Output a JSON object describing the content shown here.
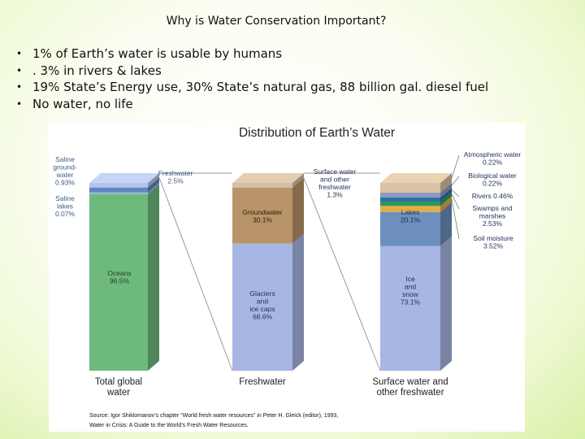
{
  "slide": {
    "title": "Why is Water Conservation Important?",
    "bullets": [
      "1% of Earth’s water is usable by humans",
      ". 3% in rivers & lakes",
      "19% State’s Energy use, 30% State’s natural gas, 88 billion gal. diesel fuel",
      "No water, no life"
    ],
    "bullet_marker": "•"
  },
  "figure": {
    "title": "Distribution of Earth’s Water",
    "source_line1": "Source: Igor Shiklomanov’s chapter “World fresh water resources” in Peter H. Gleick (editor), 1993,",
    "source_line2": "Water in Crisis: A Guide to the World’s Fresh Water Resources."
  },
  "chart_data": {
    "type": "bar",
    "title": "Distribution of Earth’s Water",
    "unit": "%",
    "bars": [
      {
        "label_lines": [
          "Total global",
          "water"
        ],
        "segments": [
          {
            "name": "Oceans",
            "value": 96.5,
            "color": "#6dba7c",
            "label_lines": [
              "Oceans",
              "96.5%"
            ]
          },
          {
            "name": "Saline lakes",
            "value": 0.07,
            "color": "#9fb6d9",
            "label_lines": [
              "Saline",
              "lakes",
              "0.07%"
            ]
          },
          {
            "name": "Saline groundwater",
            "value": 0.93,
            "color": "#5f86c4",
            "label_lines": [
              "Saline",
              "ground-",
              "water",
              "0.93%"
            ]
          },
          {
            "name": "Freshwater",
            "value": 2.5,
            "color": "#b7c4e6",
            "label_lines": [
              "Freshwater",
              "2.5%"
            ]
          }
        ]
      },
      {
        "label_lines": [
          "Freshwater"
        ],
        "segments": [
          {
            "name": "Glaciers and ice caps",
            "value": 68.6,
            "color": "#a8b6e3",
            "label_lines": [
              "Glaciers",
              "and",
              "ice caps",
              "68.6%"
            ]
          },
          {
            "name": "Groundwater",
            "value": 30.1,
            "color": "#b99468",
            "label_lines": [
              "Groundwater",
              "30.1%"
            ]
          },
          {
            "name": "Surface water and other freshwater",
            "value": 1.3,
            "color": "#d2bfa6",
            "label_lines": [
              "Surface water",
              "and other",
              "freshwater",
              "1.3%"
            ]
          }
        ]
      },
      {
        "label_lines": [
          "Surface water and",
          "other freshwater"
        ],
        "segments": [
          {
            "name": "Ice and snow",
            "value": 73.1,
            "color": "#a8b6e3",
            "label_lines": [
              "Ice",
              "and",
              "snow",
              "73.1%"
            ]
          },
          {
            "name": "Lakes",
            "value": 20.1,
            "color": "#6d8fbd",
            "label_lines": [
              "Lakes",
              "20.1%"
            ]
          },
          {
            "name": "Soil moisture",
            "value": 3.52,
            "color": "#e1ae46",
            "label_lines": [
              "Soil moisture",
              "3.52%"
            ]
          },
          {
            "name": "Swamps and marshes",
            "value": 2.53,
            "color": "#2f9a58",
            "label_lines": [
              "Swamps and",
              "marshes",
              "2.53%"
            ]
          },
          {
            "name": "Rivers",
            "value": 0.46,
            "color": "#2a72a5",
            "label_lines": [
              "Rivers  0.46%"
            ]
          },
          {
            "name": "Biological water",
            "value": 0.22,
            "color": "#8f9ac2",
            "label_lines": [
              "Biological water",
              "0.22%"
            ]
          },
          {
            "name": "Atmospheric water",
            "value": 0.22,
            "color": "#d9c2a5",
            "label_lines": [
              "Atmospheric water",
              "0.22%"
            ]
          }
        ]
      }
    ]
  }
}
